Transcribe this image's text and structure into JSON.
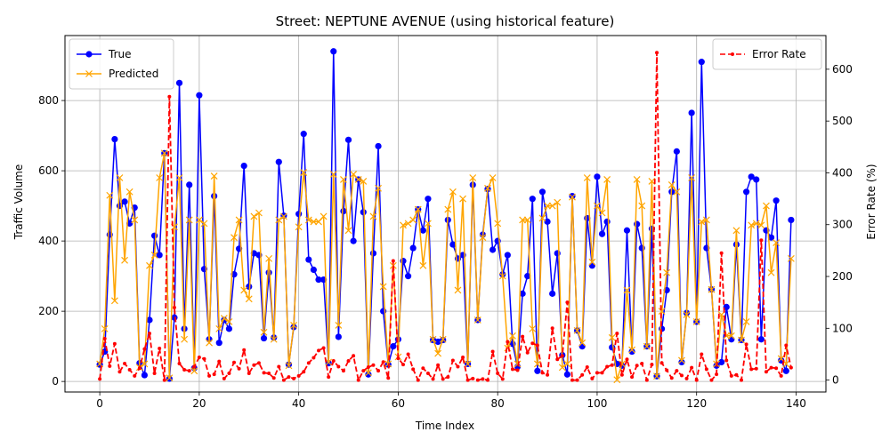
{
  "chart_data": {
    "type": "line",
    "title": "Street: NEPTUNE AVENUE (using historical feature)",
    "xlabel": "Time Index",
    "ylabel": "Traffic Volume",
    "ylabel_right": "Error Rate (%)",
    "xlim": [
      -7,
      146
    ],
    "ylim": [
      -30,
      985
    ],
    "ylim_right": [
      -23,
      665
    ],
    "x_ticks": [
      0,
      20,
      40,
      60,
      80,
      100,
      120,
      140
    ],
    "y_ticks": [
      0,
      200,
      400,
      600,
      800
    ],
    "y_ticks_right": [
      0,
      100,
      200,
      300,
      400,
      500,
      600
    ],
    "grid": true,
    "legend_left_position": "upper-left",
    "legend_right_position": "upper-right",
    "series": [
      {
        "name": "True",
        "axis": "left",
        "color": "#0000ff",
        "marker": "circle",
        "values": [
          48,
          85,
          418,
          690,
          500,
          512,
          450,
          495,
          52,
          18,
          175,
          415,
          360,
          650,
          8,
          182,
          850,
          150,
          560,
          38,
          815,
          320,
          120,
          528,
          110,
          175,
          150,
          305,
          378,
          614,
          270,
          365,
          360,
          123,
          310,
          125,
          625,
          472,
          48,
          155,
          477,
          705,
          347,
          318,
          290,
          290,
          52,
          940,
          127,
          485,
          688,
          400,
          575,
          482,
          20,
          365,
          670,
          200,
          48,
          100,
          120,
          343,
          300,
          380,
          490,
          430,
          520,
          118,
          113,
          118,
          460,
          390,
          350,
          360,
          50,
          560,
          175,
          418,
          548,
          375,
          400,
          305,
          360,
          107,
          42,
          250,
          300,
          520,
          30,
          540,
          455,
          250,
          365,
          75,
          20,
          528,
          145,
          100,
          465,
          330,
          583,
          420,
          455,
          97,
          50,
          45,
          430,
          85,
          448,
          380,
          100,
          435,
          15,
          150,
          260,
          540,
          655,
          55,
          195,
          765,
          170,
          910,
          380,
          262,
          45,
          55,
          212,
          120,
          390,
          118,
          540,
          583,
          575,
          120,
          430,
          410,
          515,
          60,
          30,
          460
        ]
      },
      {
        "name": "Predicted",
        "axis": "left",
        "color": "#ffa500",
        "marker": "x",
        "values": [
          50,
          150,
          530,
          230,
          580,
          345,
          540,
          460,
          40,
          50,
          330,
          360,
          580,
          650,
          10,
          440,
          580,
          120,
          460,
          30,
          460,
          450,
          110,
          585,
          150,
          180,
          170,
          410,
          460,
          260,
          235,
          470,
          480,
          140,
          350,
          120,
          460,
          470,
          45,
          160,
          440,
          595,
          460,
          455,
          455,
          470,
          55,
          590,
          160,
          575,
          430,
          590,
          575,
          570,
          25,
          470,
          550,
          270,
          50,
          330,
          70,
          445,
          450,
          460,
          490,
          330,
          450,
          120,
          80,
          120,
          490,
          540,
          260,
          520,
          50,
          580,
          175,
          410,
          550,
          580,
          450,
          300,
          95,
          130,
          50,
          460,
          460,
          150,
          50,
          465,
          500,
          500,
          510,
          40,
          50,
          525,
          145,
          110,
          580,
          340,
          500,
          480,
          575,
          125,
          5,
          50,
          260,
          90,
          575,
          500,
          100,
          570,
          15,
          200,
          310,
          560,
          540,
          60,
          190,
          580,
          170,
          455,
          460,
          262,
          50,
          190,
          130,
          130,
          430,
          118,
          170,
          445,
          450,
          445,
          500,
          310,
          395,
          65,
          50,
          350
        ]
      },
      {
        "name": "Error Rate",
        "axis": "right",
        "color": "#ff0000",
        "marker": "dot",
        "dashed": true,
        "values": [
          2,
          80,
          27,
          70,
          16,
          32,
          20,
          8,
          23,
          60,
          90,
          13,
          61,
          0,
          547,
          140,
          32,
          20,
          18,
          26,
          44,
          41,
          8,
          11,
          36,
          3,
          13,
          34,
          22,
          58,
          13,
          29,
          33,
          14,
          13,
          4,
          26,
          0,
          6,
          3,
          8,
          16,
          33,
          43,
          57,
          62,
          6,
          37,
          26,
          18,
          37,
          47,
          0,
          18,
          25,
          29,
          18,
          35,
          4,
          230,
          42,
          30,
          50,
          21,
          0,
          23,
          13,
          2,
          29,
          2,
          6,
          38,
          26,
          44,
          0,
          3,
          0,
          2,
          0,
          55,
          13,
          2,
          74,
          21,
          19,
          84,
          53,
          71,
          67,
          14,
          10,
          100,
          40,
          47,
          150,
          0,
          0,
          10,
          25,
          3,
          14,
          14,
          26,
          29,
          90,
          10,
          40,
          6,
          28,
          32,
          0,
          30,
          632,
          33,
          19,
          4,
          18,
          9,
          3,
          24,
          0,
          50,
          21,
          0,
          11,
          245,
          38,
          8,
          10,
          0,
          69,
          21,
          22,
          270,
          16,
          24,
          23,
          8,
          67,
          24
        ]
      }
    ]
  }
}
